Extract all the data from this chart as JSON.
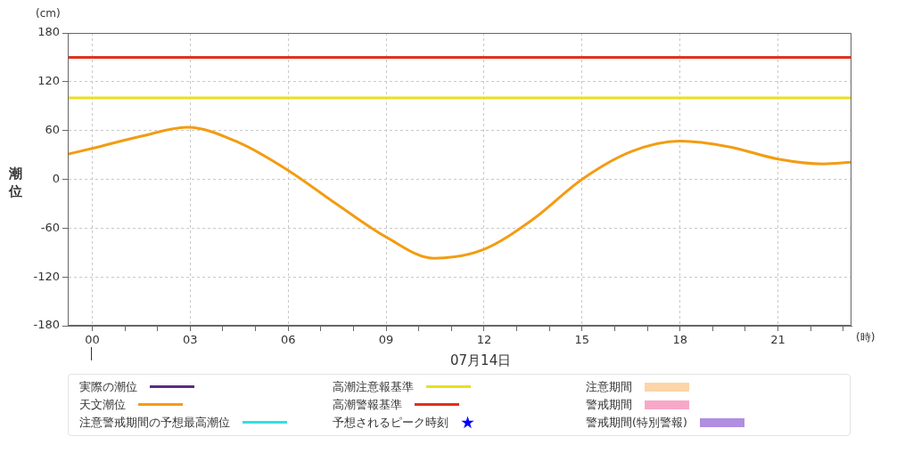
{
  "chart_data": {
    "type": "line",
    "ylabel": "潮位",
    "xlabel": "07月14日",
    "annotations": [
      "(cm)",
      "(時)"
    ],
    "x": [
      -0.75,
      0,
      1.5,
      2.9,
      4.5,
      6,
      7.5,
      9,
      10.45,
      12,
      13.5,
      15,
      16.5,
      18,
      19.5,
      21,
      22.4,
      23.25
    ],
    "series": [
      {
        "name": "実際の潮位",
        "color": "#5b2c83",
        "values": [
          null,
          null,
          null,
          null,
          null,
          null,
          null,
          null,
          null,
          null,
          null,
          null,
          null,
          null,
          null,
          null,
          null,
          null
        ]
      },
      {
        "name": "天文潮位",
        "color": "#f39c12",
        "values": [
          31,
          38,
          53,
          64,
          45,
          11,
          -31,
          -71,
          -97,
          -86,
          -49,
          0,
          34,
          47,
          40,
          25,
          19,
          21
        ]
      },
      {
        "name": "注意警戒期間の予想最高潮位",
        "color": "#33e0e0",
        "values": [
          null,
          null,
          null,
          null,
          null,
          null,
          null,
          null,
          null,
          null,
          null,
          null,
          null,
          null,
          null,
          null,
          null,
          null
        ]
      },
      {
        "name": "高潮注意報基準",
        "type": "line",
        "color": "#ebdf1f",
        "values": [
          100,
          100,
          100,
          100,
          100,
          100,
          100,
          100,
          100,
          100,
          100,
          100,
          100,
          100,
          100,
          100,
          100,
          100
        ]
      },
      {
        "name": "高潮警報基準",
        "type": "line",
        "color": "#e0321a",
        "values": [
          150,
          150,
          150,
          150,
          150,
          150,
          150,
          150,
          150,
          150,
          150,
          150,
          150,
          150,
          150,
          150,
          150,
          150
        ]
      },
      {
        "name": "予想されるピーク時刻",
        "type": "scatter",
        "marker": "star",
        "color": "#0000ff",
        "values": [
          null,
          null,
          null,
          null,
          null,
          null,
          null,
          null,
          null,
          null,
          null,
          null,
          null,
          null,
          null,
          null,
          null,
          null
        ]
      },
      {
        "name": "注意期間",
        "type": "area",
        "color": "#fcd5a8",
        "values": [
          null,
          null,
          null,
          null,
          null,
          null,
          null,
          null,
          null,
          null,
          null,
          null,
          null,
          null,
          null,
          null,
          null,
          null
        ]
      },
      {
        "name": "警戒期間",
        "type": "area",
        "color": "#f7a8c8",
        "values": [
          null,
          null,
          null,
          null,
          null,
          null,
          null,
          null,
          null,
          null,
          null,
          null,
          null,
          null,
          null,
          null,
          null,
          null
        ]
      },
      {
        "name": "警戒期間(特別警報)",
        "type": "area",
        "color": "#b08ee0",
        "values": [
          null,
          null,
          null,
          null,
          null,
          null,
          null,
          null,
          null,
          null,
          null,
          null,
          null,
          null,
          null,
          null,
          null,
          null
        ]
      }
    ],
    "xlim": [
      -0.75,
      23.25
    ],
    "xticks": [
      {
        "value": 0,
        "label": "00"
      },
      {
        "value": 1,
        "label": null
      },
      {
        "value": 2,
        "label": null
      },
      {
        "value": 3,
        "label": "03"
      },
      {
        "value": 4,
        "label": null
      },
      {
        "value": 5,
        "label": null
      },
      {
        "value": 6,
        "label": "06"
      },
      {
        "value": 7,
        "label": null
      },
      {
        "value": 8,
        "label": null
      },
      {
        "value": 9,
        "label": "09"
      },
      {
        "value": 10,
        "label": null
      },
      {
        "value": 11,
        "label": null
      },
      {
        "value": 12,
        "label": "12"
      },
      {
        "value": 13,
        "label": null
      },
      {
        "value": 14,
        "label": null
      },
      {
        "value": 15,
        "label": "15"
      },
      {
        "value": 16,
        "label": null
      },
      {
        "value": 17,
        "label": null
      },
      {
        "value": 18,
        "label": "18"
      },
      {
        "value": 19,
        "label": null
      },
      {
        "value": 20,
        "label": null
      },
      {
        "value": 21,
        "label": "21"
      },
      {
        "value": 22,
        "label": null
      },
      {
        "value": 23,
        "label": null
      }
    ],
    "ylim": [
      -180,
      180
    ],
    "yticks": [
      -180,
      -120,
      -60,
      0,
      60,
      120,
      180
    ],
    "grid": true,
    "legend": "bottom",
    "marker": "none",
    "line_style": "solid"
  }
}
